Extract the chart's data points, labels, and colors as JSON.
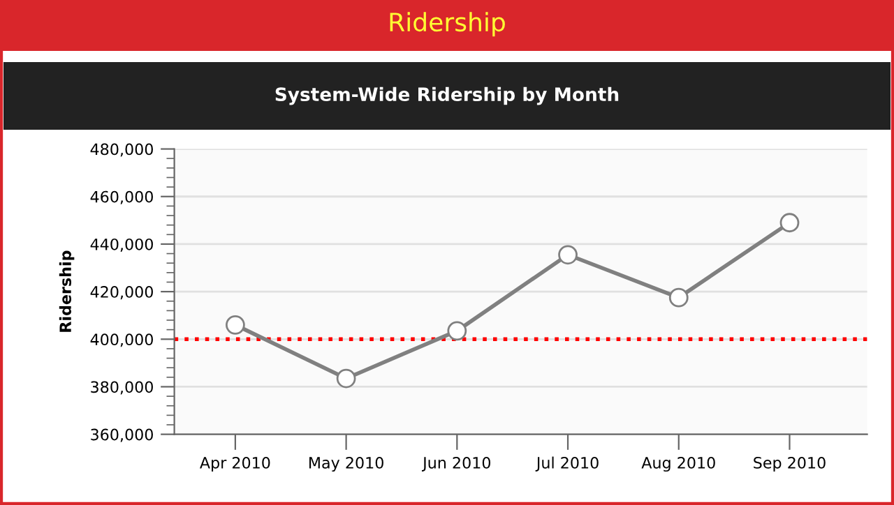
{
  "chart_data": {
    "type": "line",
    "title": "Ridership",
    "subtitle": "System-Wide Ridership by Month",
    "ylabel": "Ridership",
    "categories": [
      "Apr 2010",
      "May 2010",
      "Jun 2010",
      "Jul 2010",
      "Aug 2010",
      "Sep 2010"
    ],
    "series": [
      {
        "color": "#808080",
        "values": [
          406000,
          383500,
          403500,
          435500,
          417500,
          449000
        ]
      }
    ],
    "ylim": [
      360000,
      480000
    ],
    "yticks": [
      {
        "value": 360000,
        "label": "360,000"
      },
      {
        "value": 380000,
        "label": "380,000"
      },
      {
        "value": 400000,
        "label": "400,000"
      },
      {
        "value": 420000,
        "label": "420,000"
      },
      {
        "value": 440000,
        "label": "440,000"
      },
      {
        "value": 460000,
        "label": "460,000"
      },
      {
        "value": 480000,
        "label": "480,000"
      }
    ],
    "ref_lines": [
      {
        "axis": "y",
        "value": 400000,
        "color": "#ff0000",
        "line_style": "dotted"
      }
    ],
    "grid": "y",
    "marker": "circle",
    "line_style": "solid"
  }
}
